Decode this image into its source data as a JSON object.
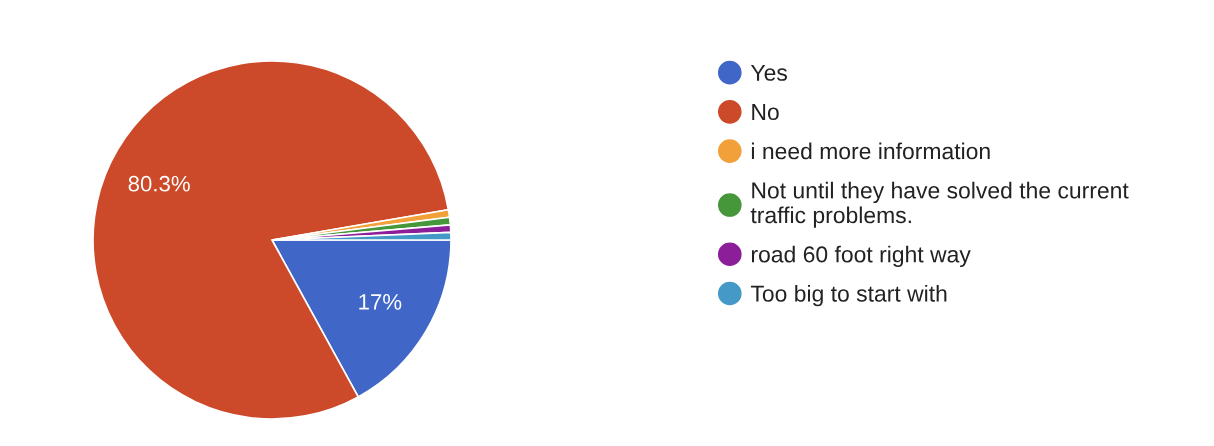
{
  "chart_data": {
    "type": "pie",
    "categories": [
      "Yes",
      "No",
      "i need more information",
      "Not until they have solved the current traffic problems.",
      "road 60 foot right way",
      "Too big to start with"
    ],
    "values": [
      17,
      80.3,
      0.675,
      0.675,
      0.675,
      0.675
    ],
    "colors": [
      "#4066c8",
      "#cc4a29",
      "#f2a13a",
      "#46963a",
      "#8c1e99",
      "#4599c6"
    ],
    "value_labels": [
      "17%",
      "80.3%",
      null,
      null,
      null,
      null
    ],
    "legend": "right"
  }
}
